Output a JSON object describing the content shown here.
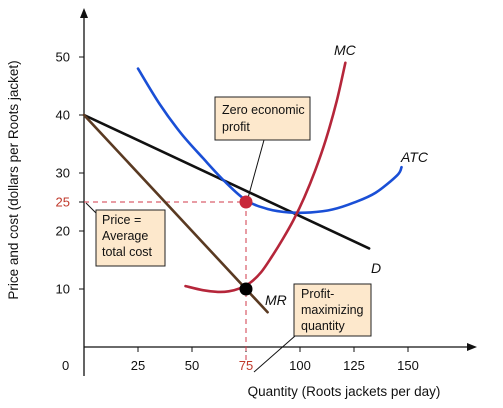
{
  "chart_data": {
    "type": "line",
    "xlabel": "Quantity (Roots jackets per day)",
    "ylabel": "Price and cost (dollars per Roots jacket)",
    "xlim": [
      0,
      160
    ],
    "ylim": [
      0,
      58
    ],
    "origin_label": "0",
    "x_ticks": [
      25,
      50,
      75,
      100,
      125,
      150
    ],
    "x_tick_labels": [
      "25",
      "50",
      "75",
      "100",
      "125",
      "150"
    ],
    "y_ticks": [
      10,
      20,
      25,
      30,
      40,
      50
    ],
    "y_tick_labels": [
      "10",
      "20",
      "25",
      "30",
      "40",
      "50"
    ],
    "highlight_x_tick": "75",
    "highlight_y_tick": "25",
    "series": [
      {
        "name": "D",
        "color": "#111111",
        "x": [
          0,
          132
        ],
        "y": [
          40,
          17
        ]
      },
      {
        "name": "MR",
        "color": "#5a3a22",
        "x": [
          0,
          85
        ],
        "y": [
          40,
          6
        ]
      },
      {
        "name": "ATC",
        "color": "#1a4fd6",
        "x": [
          25,
          35,
          45,
          55,
          65,
          75,
          85,
          95,
          105,
          115,
          125,
          135,
          145,
          147
        ],
        "y": [
          48,
          41.9,
          36.8,
          32.6,
          28.6,
          25.3,
          23.8,
          23.2,
          23.2,
          23.7,
          24.9,
          26.6,
          29.6,
          31
        ]
      },
      {
        "name": "MC",
        "color": "#b5263a",
        "x": [
          47,
          55,
          62,
          67,
          72,
          77,
          82,
          87,
          92,
          97,
          102,
          107,
          112,
          117,
          121
        ],
        "y": [
          10.5,
          9.8,
          9.5,
          9.6,
          10.1,
          11.1,
          12.9,
          15.6,
          18.6,
          21.9,
          25.8,
          30.4,
          35.8,
          42.4,
          49
        ]
      }
    ],
    "points": [
      {
        "x": 75,
        "y": 25,
        "color": "#c8283a"
      },
      {
        "x": 75,
        "y": 10,
        "color": "#000000"
      }
    ],
    "annotations": [
      {
        "id": "zero-profit",
        "lines": [
          "Zero economic",
          "profit"
        ]
      },
      {
        "id": "price-atc",
        "lines": [
          "Price =",
          "Average",
          "total cost"
        ]
      },
      {
        "id": "profit-max",
        "lines": [
          "Profit-",
          "maximizing",
          "quantity"
        ]
      }
    ],
    "grid": false,
    "legend": "none"
  }
}
